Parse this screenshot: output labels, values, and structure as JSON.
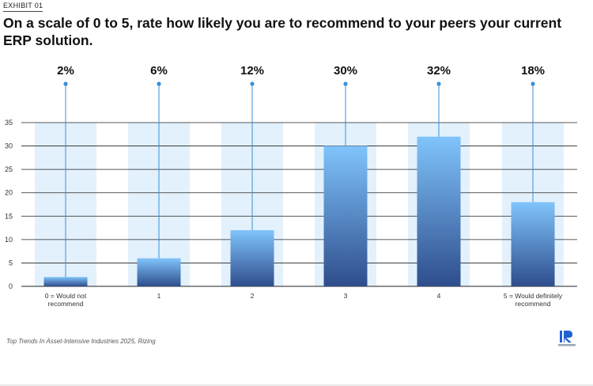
{
  "exhibit_label": "EXHIBIT 01",
  "title": "On a scale of 0 to 5, rate how likely you are to recommend to your peers your current ERP solution.",
  "source": "Top Trends In Asset-Intensive Industries 2025, Rizing",
  "colors": {
    "bar_top": "#80c4fb",
    "bar_bottom": "#2e4d8c",
    "column_bg": "#e3f1fd",
    "leader_line": "#3a8ed8",
    "gridline": "#222222",
    "logo_accent": "#1f5fd1"
  },
  "chart_data": {
    "type": "bar",
    "categories": [
      "0 = Would not recommend",
      "1",
      "2",
      "3",
      "4",
      "5 = Would definitely recommend"
    ],
    "category_lines": [
      [
        "0 = Would not",
        "recommend"
      ],
      [
        "1"
      ],
      [
        "2"
      ],
      [
        "3"
      ],
      [
        "4"
      ],
      [
        "5 = Would definitely",
        "recommend"
      ]
    ],
    "values": [
      2,
      6,
      12,
      30,
      32,
      18
    ],
    "data_labels": [
      "2%",
      "6%",
      "12%",
      "30%",
      "32%",
      "18%"
    ],
    "ylim": [
      0,
      35
    ],
    "yticks": [
      0,
      5,
      10,
      15,
      20,
      25,
      30,
      35
    ],
    "grid": true,
    "title": "",
    "xlabel": "",
    "ylabel": ""
  }
}
